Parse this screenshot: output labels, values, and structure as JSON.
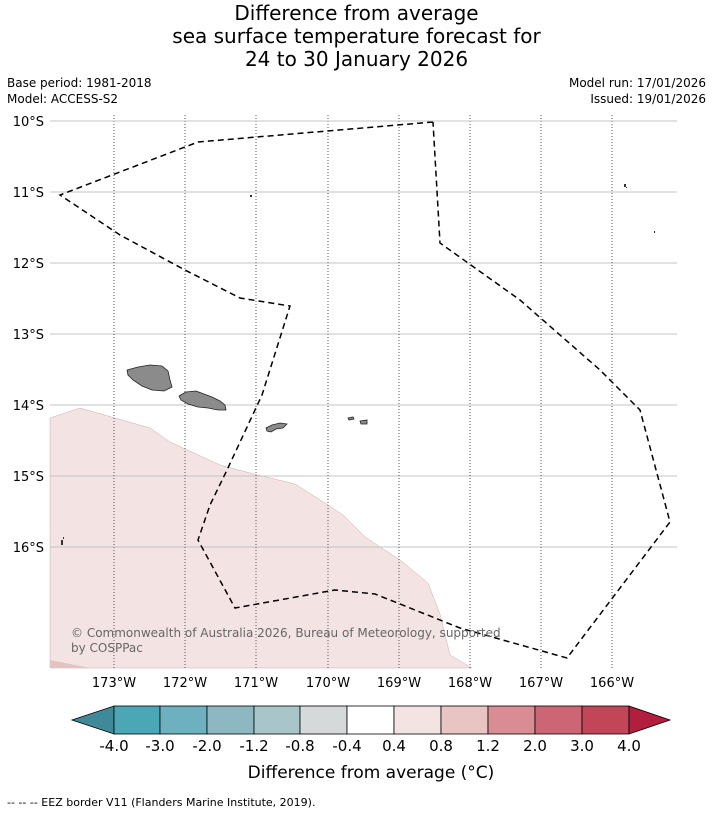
{
  "title": {
    "line1": "Difference from average",
    "line2": "sea surface temperature forecast for",
    "line3": "24 to 30 January 2026"
  },
  "info_left": {
    "base_period": "Base period: 1981-2018",
    "model": "Model: ACCESS-S2"
  },
  "info_right": {
    "model_run": "Model run: 17/01/2026",
    "issued": "Issued: 19/01/2026"
  },
  "map": {
    "lat_labels": [
      "10°S",
      "11°S",
      "12°S",
      "13°S",
      "14°S",
      "15°S",
      "16°S"
    ],
    "lon_labels": [
      "173°W",
      "172°W",
      "171°W",
      "170°W",
      "169°W",
      "168°W",
      "167°W",
      "166°W"
    ],
    "anomaly_region_range": "0.4 to 0.8",
    "copyright": "© Commonwealth of Australia 2026, Bureau of Meteorology, supported by COSPPac"
  },
  "colorbar": {
    "labels": [
      "-4.0",
      "-3.0",
      "-2.0",
      "-1.2",
      "-0.8",
      "-0.4",
      "0.4",
      "0.8",
      "1.2",
      "2.0",
      "3.0",
      "4.0"
    ],
    "colors": [
      "#3f8a98",
      "#4ba6b6",
      "#6db1c0",
      "#8db8c2",
      "#a8c6ca",
      "#d5d9da",
      "#ffffff",
      "#f3e4e3",
      "#e8c4c3",
      "#d98c94",
      "#cd6674",
      "#c24657",
      "#b21e3e"
    ],
    "title": "Difference from average (°C)"
  },
  "legend": {
    "footer": "--  --  -- EEZ border V11 (Flanders Marine Institute, 2019)."
  }
}
